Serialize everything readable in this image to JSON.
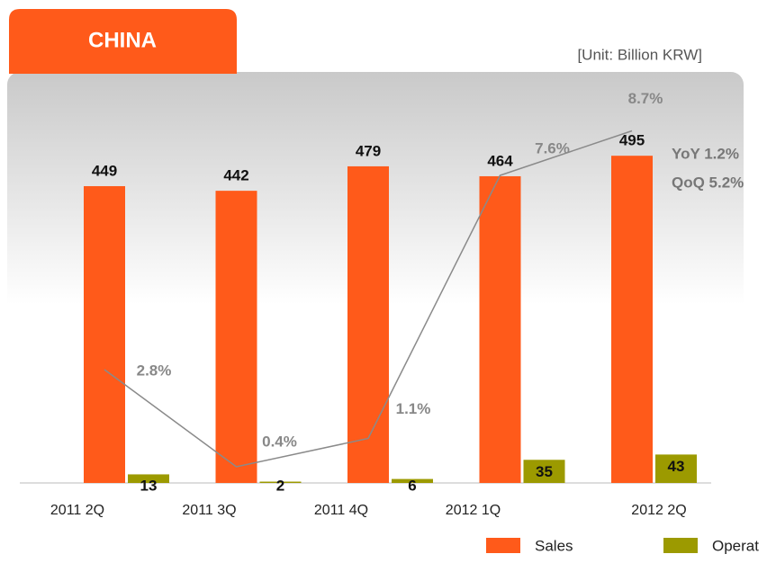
{
  "chart_data": {
    "type": "bar",
    "tab_title": "CHINA",
    "unit_note": "[Unit: Billion KRW]",
    "annotations": [
      "YoY 1.2%",
      "QoQ 5.2%"
    ],
    "categories": [
      "2011 2Q",
      "2011 3Q",
      "2011 4Q",
      "2012 1Q",
      "2012 2Q"
    ],
    "series": [
      {
        "name": "Sales",
        "color": "#ff5a1a",
        "values": [
          449,
          442,
          479,
          464,
          495
        ]
      },
      {
        "name": "Operat",
        "color": "#9c9a00",
        "values": [
          13,
          2,
          6,
          35,
          43
        ]
      },
      {
        "type": "line",
        "axis": "y2",
        "color": "#8a8a8a",
        "values": [
          2.8,
          0.4,
          1.1,
          7.6,
          8.7
        ],
        "value_labels": [
          "2.8%",
          "0.4%",
          "1.1%",
          "7.6%",
          "8.7%"
        ]
      }
    ],
    "ylim": [
      0,
      600
    ],
    "yticks": [],
    "y2lim": [
      0,
      9.8
    ],
    "y2ticks": [],
    "legend": "bottom-right"
  }
}
